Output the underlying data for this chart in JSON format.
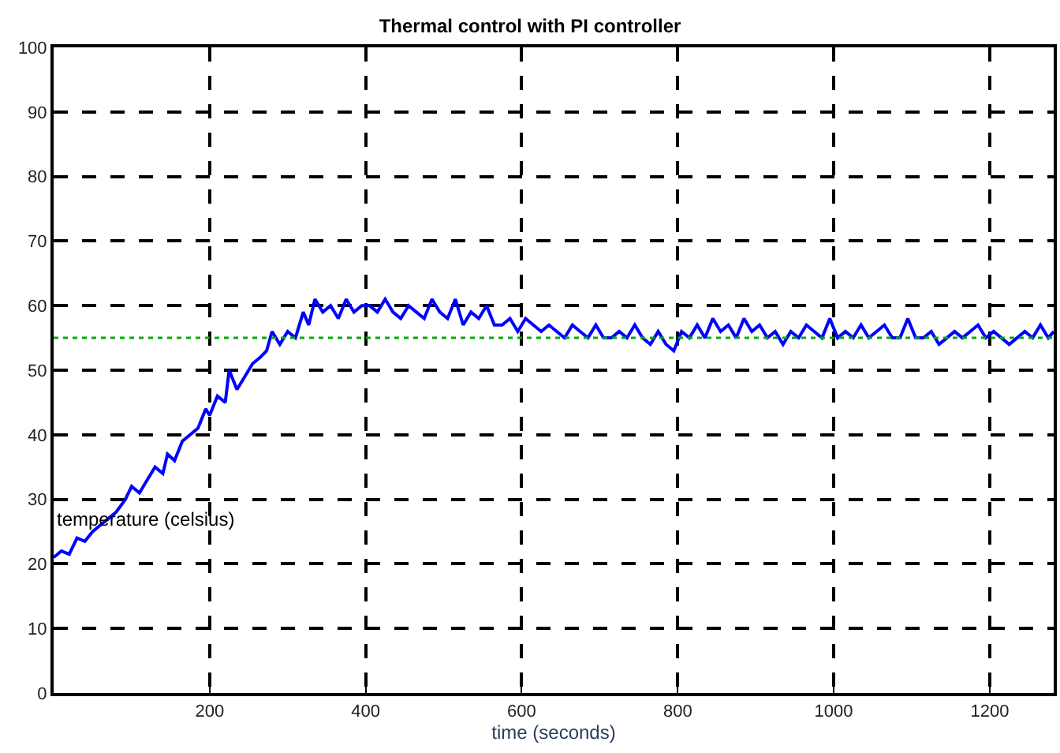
{
  "chart_data": {
    "type": "line",
    "title": "Thermal control with PI controller",
    "xlabel": "time (seconds)",
    "ylabel": "temperature (celsius)",
    "x": [
      0,
      10,
      20,
      30,
      40,
      50,
      60,
      70,
      80,
      92,
      100,
      110,
      120,
      130,
      140,
      146,
      155,
      165,
      175,
      185,
      195,
      200,
      210,
      220,
      225,
      235,
      245,
      255,
      265,
      273,
      280,
      290,
      300,
      310,
      320,
      327,
      335,
      345,
      355,
      365,
      375,
      385,
      395,
      405,
      415,
      425,
      435,
      445,
      455,
      465,
      475,
      485,
      495,
      505,
      515,
      525,
      535,
      545,
      555,
      565,
      575,
      585,
      595,
      605,
      615,
      625,
      635,
      645,
      655,
      665,
      675,
      685,
      695,
      705,
      715,
      725,
      735,
      745,
      755,
      765,
      775,
      785,
      795,
      805,
      815,
      825,
      835,
      845,
      855,
      865,
      875,
      885,
      895,
      905,
      915,
      925,
      935,
      945,
      955,
      965,
      975,
      985,
      995,
      1005,
      1015,
      1025,
      1035,
      1045,
      1055,
      1065,
      1075,
      1085,
      1095,
      1105,
      1115,
      1125,
      1135,
      1145,
      1155,
      1165,
      1175,
      1185,
      1195,
      1205,
      1215,
      1225,
      1235,
      1245,
      1255,
      1265,
      1275,
      1282
    ],
    "series": [
      {
        "color": "#0000ff",
        "values": [
          21,
          22,
          21.5,
          24,
          23.5,
          25,
          26,
          27,
          28,
          30,
          32,
          31,
          33,
          35,
          34,
          37,
          36,
          39,
          40,
          41,
          44,
          43,
          46,
          45,
          50,
          47,
          49,
          51,
          52,
          53,
          56,
          54,
          56,
          55,
          59,
          57,
          61,
          59,
          60,
          58,
          61,
          59,
          60,
          60,
          59,
          61,
          59,
          58,
          60,
          59,
          58,
          61,
          59,
          58,
          61,
          57,
          59,
          58,
          60,
          57,
          57,
          58,
          56,
          58,
          57,
          56,
          57,
          56,
          55,
          57,
          56,
          55,
          57,
          55,
          55,
          56,
          55,
          57,
          55,
          54,
          56,
          54,
          53,
          56,
          55,
          57,
          55,
          58,
          56,
          57,
          55,
          58,
          56,
          57,
          55,
          56,
          54,
          56,
          55,
          57,
          56,
          55,
          58,
          55,
          56,
          55,
          57,
          55,
          56,
          57,
          55,
          55,
          58,
          55,
          55,
          56,
          54,
          55,
          56,
          55,
          56,
          57,
          55,
          56,
          55,
          54,
          55,
          56,
          55,
          57,
          55,
          56
        ]
      }
    ],
    "xlim": [
      0,
      1282
    ],
    "ylim": [
      0,
      100
    ],
    "xticks": [
      200,
      400,
      600,
      800,
      1000,
      1200
    ],
    "yticks": [
      0,
      10,
      20,
      30,
      40,
      50,
      60,
      70,
      80,
      90,
      100
    ],
    "ref_lines": [
      {
        "axis": "y",
        "value": 55,
        "color": "#00aa00",
        "line_style": "dotted"
      }
    ],
    "grid": true,
    "line_style": "solid",
    "marker": "none"
  }
}
